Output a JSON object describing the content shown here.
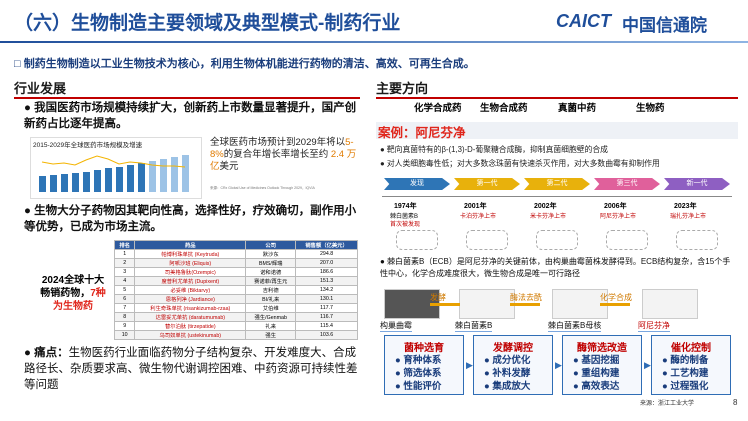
{
  "header": {
    "title": "（六）生物制造主要领域及典型模式-制药行业",
    "logo_en": "CAICT",
    "logo_cn": "中国信通院"
  },
  "summary": "制药生物制造以工业生物技术为核心，利用生物体机能进行药物的清洁、高效、可再生合成。",
  "left": {
    "heading": "行业发展",
    "bullet1": "我国医药市场规模持续扩大，创新药上市数量显著提升，国产创新药占比逐年提高。",
    "chart_title": "2015-2029年全球医药市场规模及增速",
    "forecast": [
      "全球医药市场预计到2029年将以",
      "5-8%",
      "的复合年增长率增长至约 ",
      "2.4 万亿",
      "美元"
    ],
    "chart_source": "来源：CRx Global Use of Medicines Outlook Through 2029，IQVIA",
    "bullet2": "生物大分子药物因其靶向性高，选择性好，疗效确切，副作用小等优势，已成为市场主流。",
    "table_caption": [
      "2024全球十大畅销药物，",
      "7种",
      "为生物药"
    ],
    "table": {
      "header": [
        "排名",
        "药品",
        "公司",
        "销售额（亿美元）"
      ],
      "rows": [
        [
          "1",
          "帕博利珠单抗 (Keytruda)",
          "默沙东",
          "294.8"
        ],
        [
          "2",
          "阿哌沙班 (Eliquis)",
          "BMS/辉瑞",
          "207.0"
        ],
        [
          "3",
          "司美格鲁肽(Ozempic)",
          "诺和诺德",
          "186.6"
        ],
        [
          "4",
          "度普利尤单抗 (Dupixent)",
          "赛诺菲/再生元",
          "151.3"
        ],
        [
          "5",
          "必妥维 (Biktarvy)",
          "吉利德",
          "134.2"
        ],
        [
          "6",
          "恩格列净 (Jardiance)",
          "BI/礼来",
          "130.1"
        ],
        [
          "7",
          "利生奇珠单抗 (risankizumab-rzaa)",
          "艾伯维",
          "117.7"
        ],
        [
          "8",
          "达雷妥尤单抗 (daratumumab)",
          "强生/Genmab",
          "116.7"
        ],
        [
          "9",
          "替尔泊肽 (tirzepatide)",
          "礼来",
          "115.4"
        ],
        [
          "10",
          "乌司奴单抗 (ustekinumab)",
          "强生",
          "103.6"
        ]
      ]
    },
    "pain_label": "痛点：",
    "pain": "生物医药行业面临药物分子结构复杂、开发难度大、合成路径长、杂质要求高、微生物代谢调控困难、中药资源可持续性差等问题"
  },
  "right": {
    "heading": "主要方向",
    "directions": [
      "化学合成药",
      "生物合成药",
      "真菌中药",
      "生物药"
    ],
    "case_title": "案例：阿尼芬净",
    "case_bullets": [
      "靶向真菌特有的β-(1,3)-D-葡聚糖合成酶，抑制真菌细胞壁的合成",
      "对人类细胞毒性低；对大多数念珠菌有快速杀灭作用，对大多数曲霉有抑制作用"
    ],
    "stages": [
      "发现",
      "第一代",
      "第二代",
      "第三代",
      "新一代"
    ],
    "milestones": [
      {
        "year": "1974年",
        "text": "棘白菌素B",
        "note": "首次被发现"
      },
      {
        "year": "2001年",
        "text": "卡泊芬净上市"
      },
      {
        "year": "2002年",
        "text": "米卡芬净上市"
      },
      {
        "year": "2006年",
        "text": "阿尼芬净上市"
      },
      {
        "year": "2023年",
        "text": "瑞扎芬净上市"
      }
    ],
    "ecb": "棘白菌素B（ECB）是阿尼芬净的关键前体，由构巢曲霉菌株发酵得到。ECB结构复杂，含15个手性中心，化学合成难度很大，微生物合成是唯一可行路径",
    "steps": [
      "发酵",
      "酶法去酰",
      "化学合成"
    ],
    "products": [
      "构巢曲霉",
      "棘白菌素B",
      "棘白菌素B母核",
      "阿尼芬净"
    ],
    "boxes": [
      {
        "title": "菌种选育",
        "items": [
          "育种体系",
          "筛选体系",
          "性能评价"
        ]
      },
      {
        "title": "发酵调控",
        "items": [
          "成分优化",
          "补料发酵",
          "集成放大"
        ]
      },
      {
        "title": "酶筛选改造",
        "items": [
          "基因挖掘",
          "重组构建",
          "高效表达"
        ]
      },
      {
        "title": "催化控制",
        "items": [
          "酶的制备",
          "工艺构建",
          "过程强化"
        ]
      }
    ]
  },
  "footer": {
    "source": "来源：浙江工业大学",
    "page": "8"
  }
}
